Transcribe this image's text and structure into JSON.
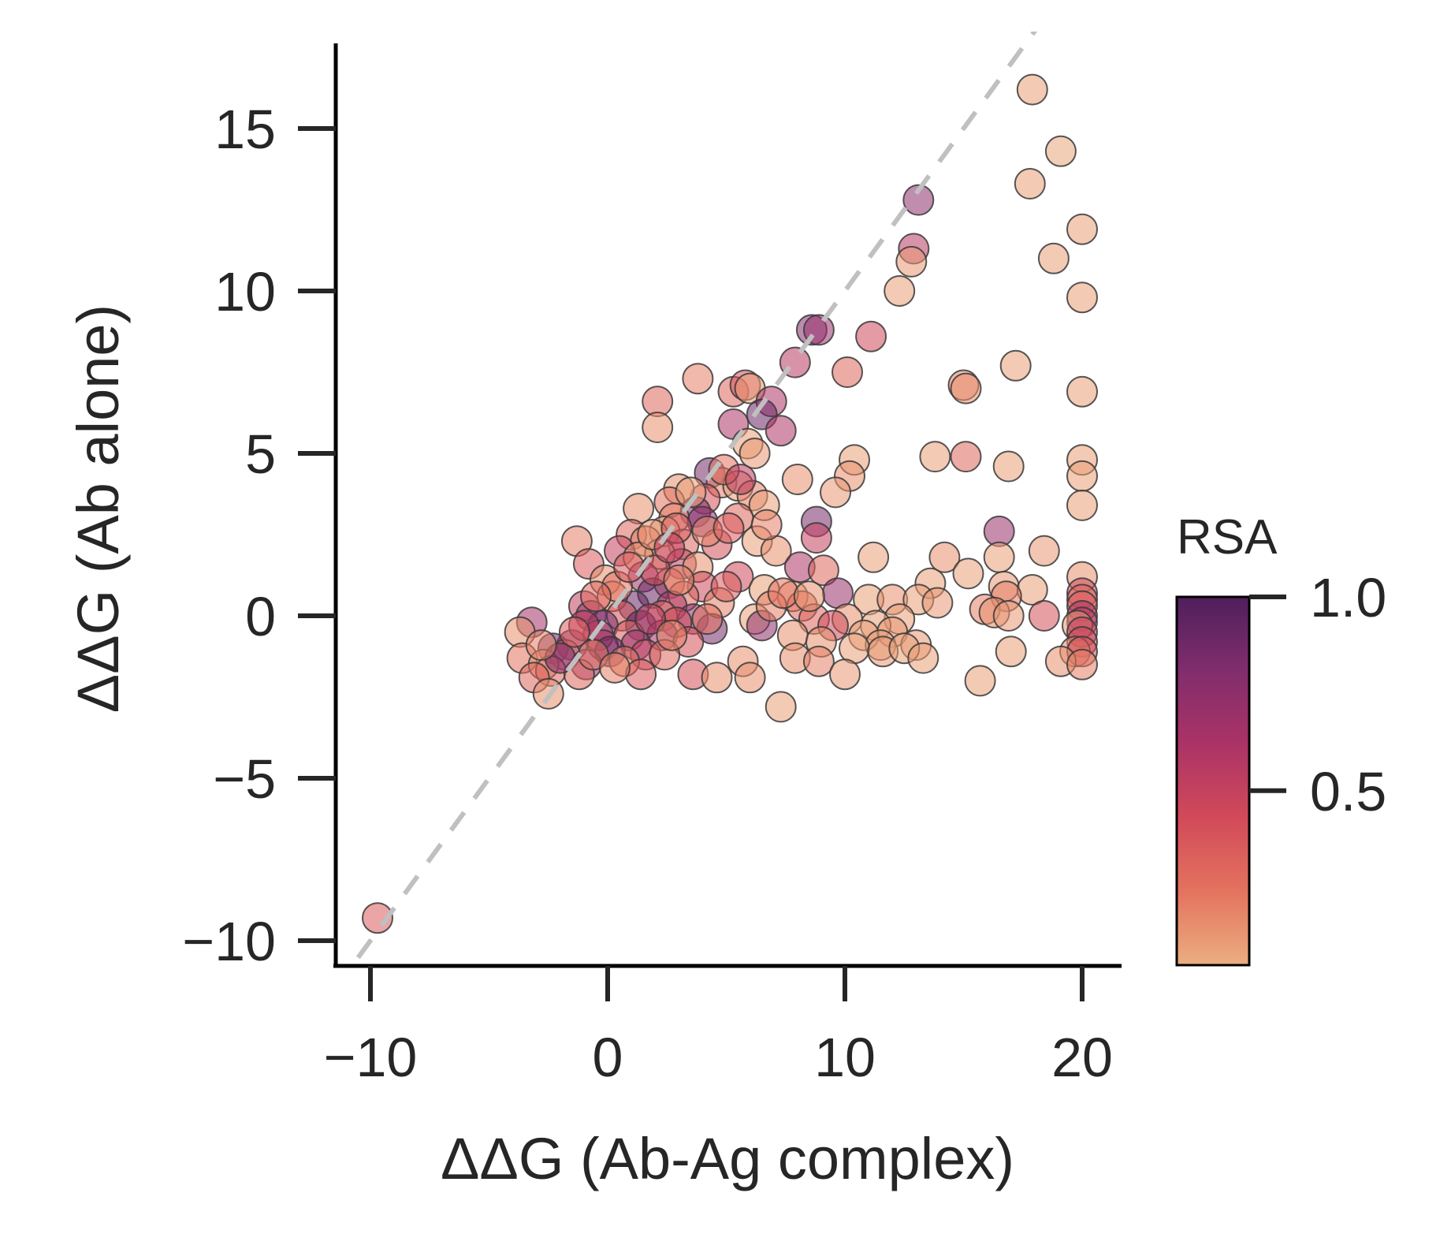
{
  "chart_data": {
    "type": "scatter",
    "title": "",
    "xlabel": "ΔΔG (Ab-Ag complex)",
    "ylabel": "ΔΔG (Ab alone)",
    "xlim": [
      -11.5,
      21.5
    ],
    "ylim": [
      -10.7,
      17.6
    ],
    "xticks": [
      -10,
      0,
      10,
      20
    ],
    "xtick_labels": [
      "−10",
      "0",
      "10",
      "20"
    ],
    "yticks": [
      -10,
      -5,
      0,
      5,
      10,
      15
    ],
    "ytick_labels": [
      "−10",
      "−5",
      "0",
      "5",
      "10",
      "15"
    ],
    "grid": false,
    "reference_line": {
      "style": "dashed",
      "color": "#c0c0c0",
      "slope": 1,
      "intercept": 0
    },
    "colorbar": {
      "title": "RSA",
      "range": [
        0.05,
        1.0
      ],
      "ticks": [
        0.5,
        1.0
      ],
      "tick_labels": [
        "0.5",
        "1.0"
      ],
      "colormap": [
        "#ebae7f",
        "#e4735f",
        "#d24a59",
        "#ab3366",
        "#812d6d",
        "#4f1f5c"
      ]
    },
    "marker": {
      "alpha": 0.55,
      "edgecolor": "#3a3a3a"
    },
    "points": [
      [
        -9.7,
        -9.3,
        0.35
      ],
      [
        17.9,
        16.2,
        0.1
      ],
      [
        19.1,
        14.3,
        0.08
      ],
      [
        17.8,
        13.3,
        0.1
      ],
      [
        13.1,
        12.8,
        0.75
      ],
      [
        20.0,
        11.9,
        0.1
      ],
      [
        12.9,
        11.3,
        0.55
      ],
      [
        12.8,
        10.9,
        0.12
      ],
      [
        18.8,
        11.0,
        0.1
      ],
      [
        12.3,
        10.0,
        0.1
      ],
      [
        20.0,
        9.8,
        0.1
      ],
      [
        11.1,
        8.6,
        0.45
      ],
      [
        8.6,
        8.8,
        0.8
      ],
      [
        8.9,
        8.8,
        0.7
      ],
      [
        7.9,
        7.8,
        0.55
      ],
      [
        17.2,
        7.7,
        0.1
      ],
      [
        10.1,
        7.5,
        0.3
      ],
      [
        3.8,
        7.3,
        0.2
      ],
      [
        15.0,
        7.1,
        0.2
      ],
      [
        15.1,
        7.0,
        0.15
      ],
      [
        20.0,
        6.9,
        0.1
      ],
      [
        5.3,
        6.9,
        0.3
      ],
      [
        5.8,
        7.1,
        0.4
      ],
      [
        6.0,
        7.0,
        0.1
      ],
      [
        6.9,
        6.6,
        0.6
      ],
      [
        6.5,
        6.2,
        0.9
      ],
      [
        2.1,
        6.6,
        0.3
      ],
      [
        2.1,
        5.8,
        0.15
      ],
      [
        5.3,
        5.9,
        0.6
      ],
      [
        7.3,
        5.7,
        0.6
      ],
      [
        5.9,
        5.3,
        0.1
      ],
      [
        10.4,
        4.8,
        0.1
      ],
      [
        13.8,
        4.9,
        0.1
      ],
      [
        15.1,
        4.9,
        0.3
      ],
      [
        16.9,
        4.6,
        0.1
      ],
      [
        20.0,
        4.8,
        0.1
      ],
      [
        10.2,
        4.3,
        0.15
      ],
      [
        20.0,
        4.3,
        0.1
      ],
      [
        8.0,
        4.2,
        0.15
      ],
      [
        9.6,
        3.8,
        0.12
      ],
      [
        4.3,
        4.4,
        0.85
      ],
      [
        4.8,
        4.1,
        0.2
      ],
      [
        5.5,
        4.0,
        0.1
      ],
      [
        6.1,
        3.7,
        0.2
      ],
      [
        4.1,
        3.6,
        0.4
      ],
      [
        3.0,
        3.9,
        0.15
      ],
      [
        2.6,
        3.5,
        0.25
      ],
      [
        3.7,
        3.2,
        0.8
      ],
      [
        6.6,
        3.4,
        0.1
      ],
      [
        1.3,
        3.3,
        0.15
      ],
      [
        20.0,
        3.4,
        0.1
      ],
      [
        2.8,
        3.0,
        0.2
      ],
      [
        4.0,
        2.9,
        0.75
      ],
      [
        5.5,
        3.0,
        0.3
      ],
      [
        8.8,
        2.9,
        0.85
      ],
      [
        16.5,
        2.6,
        0.7
      ],
      [
        2.4,
        2.6,
        0.1
      ],
      [
        1.0,
        2.5,
        0.3
      ],
      [
        1.6,
        2.3,
        0.2
      ],
      [
        -1.3,
        2.3,
        0.2
      ],
      [
        3.2,
        2.2,
        0.3
      ],
      [
        6.3,
        2.3,
        0.1
      ],
      [
        8.8,
        2.4,
        0.5
      ],
      [
        7.1,
        2.0,
        0.15
      ],
      [
        4.6,
        2.2,
        0.4
      ],
      [
        0.5,
        2.0,
        0.5
      ],
      [
        2.2,
        1.9,
        0.1
      ],
      [
        18.4,
        2.0,
        0.12
      ],
      [
        1.3,
        1.8,
        0.15
      ],
      [
        11.2,
        1.8,
        0.1
      ],
      [
        14.2,
        1.8,
        0.15
      ],
      [
        16.5,
        1.8,
        0.1
      ],
      [
        3.1,
        1.6,
        0.5
      ],
      [
        3.8,
        1.5,
        0.15
      ],
      [
        -0.8,
        1.6,
        0.35
      ],
      [
        8.1,
        1.5,
        0.6
      ],
      [
        15.2,
        1.3,
        0.1
      ],
      [
        9.1,
        1.4,
        0.3
      ],
      [
        1.5,
        1.2,
        0.65
      ],
      [
        5.5,
        1.2,
        0.45
      ],
      [
        20.0,
        1.2,
        0.15
      ],
      [
        2.6,
        1.0,
        0.35
      ],
      [
        -0.1,
        1.1,
        0.15
      ],
      [
        16.7,
        0.9,
        0.12
      ],
      [
        13.6,
        1.0,
        0.1
      ],
      [
        1.9,
        0.7,
        0.9
      ],
      [
        4.0,
        0.9,
        0.45
      ],
      [
        6.6,
        0.8,
        0.1
      ],
      [
        17.9,
        0.8,
        0.1
      ],
      [
        20.0,
        0.7,
        0.45
      ],
      [
        0.2,
        0.6,
        0.2
      ],
      [
        3.2,
        0.6,
        0.3
      ],
      [
        7.8,
        0.6,
        0.1
      ],
      [
        9.7,
        0.7,
        0.7
      ],
      [
        11.0,
        0.5,
        0.1
      ],
      [
        12.0,
        0.5,
        0.15
      ],
      [
        13.1,
        0.5,
        0.1
      ],
      [
        16.8,
        0.6,
        0.2
      ],
      [
        20.0,
        0.5,
        0.3
      ],
      [
        -1.0,
        0.3,
        0.5
      ],
      [
        1.1,
        0.3,
        0.9
      ],
      [
        2.7,
        0.3,
        0.6
      ],
      [
        4.7,
        0.4,
        0.2
      ],
      [
        8.2,
        0.3,
        0.3
      ],
      [
        13.9,
        0.4,
        0.12
      ],
      [
        20.0,
        0.3,
        0.35
      ],
      [
        -0.7,
        0.0,
        0.7
      ],
      [
        0.6,
        0.0,
        0.4
      ],
      [
        2.3,
        0.0,
        0.3
      ],
      [
        3.6,
        -0.1,
        0.75
      ],
      [
        6.2,
        -0.1,
        0.1
      ],
      [
        8.7,
        -0.1,
        0.3
      ],
      [
        10.1,
        -0.1,
        0.15
      ],
      [
        12.3,
        -0.1,
        0.1
      ],
      [
        15.9,
        0.2,
        0.2
      ],
      [
        16.3,
        0.1,
        0.15
      ],
      [
        16.9,
        0.0,
        0.12
      ],
      [
        18.4,
        0.0,
        0.4
      ],
      [
        20.0,
        0.0,
        0.6
      ],
      [
        -3.2,
        -0.2,
        0.65
      ],
      [
        -0.2,
        -0.3,
        0.85
      ],
      [
        1.4,
        -0.3,
        0.95
      ],
      [
        2.9,
        -0.2,
        0.45
      ],
      [
        4.4,
        -0.4,
        0.85
      ],
      [
        6.5,
        -0.3,
        0.75
      ],
      [
        9.5,
        -0.3,
        0.45
      ],
      [
        11.3,
        -0.3,
        0.1
      ],
      [
        20.0,
        -0.2,
        0.55
      ],
      [
        19.8,
        -0.3,
        0.12
      ],
      [
        -3.7,
        -0.5,
        0.15
      ],
      [
        -0.4,
        -0.6,
        0.6
      ],
      [
        0.9,
        -0.6,
        0.35
      ],
      [
        2.3,
        -0.6,
        0.65
      ],
      [
        7.8,
        -0.6,
        0.15
      ],
      [
        10.8,
        -0.6,
        0.1
      ],
      [
        12.0,
        -0.5,
        0.12
      ],
      [
        20.0,
        -0.5,
        0.5
      ],
      [
        -1.5,
        -0.9,
        0.75
      ],
      [
        -0.2,
        -0.9,
        0.6
      ],
      [
        1.2,
        -0.9,
        0.7
      ],
      [
        3.4,
        -0.8,
        0.4
      ],
      [
        9.0,
        -0.8,
        0.15
      ],
      [
        11.5,
        -0.9,
        0.1
      ],
      [
        13.0,
        -0.9,
        0.12
      ],
      [
        20.0,
        -0.8,
        0.45
      ],
      [
        -2.3,
        -1.0,
        0.85
      ],
      [
        -1.8,
        -1.2,
        0.3
      ],
      [
        0.1,
        -1.1,
        0.9
      ],
      [
        1.6,
        -1.2,
        0.5
      ],
      [
        2.4,
        -1.2,
        0.3
      ],
      [
        10.4,
        -1.0,
        0.1
      ],
      [
        11.6,
        -1.1,
        0.12
      ],
      [
        12.5,
        -1.0,
        0.1
      ],
      [
        17.0,
        -1.1,
        0.1
      ],
      [
        19.7,
        -1.1,
        0.15
      ],
      [
        20.0,
        -1.1,
        0.4
      ],
      [
        -3.6,
        -1.3,
        0.25
      ],
      [
        -2.7,
        -1.5,
        0.15
      ],
      [
        -0.9,
        -1.5,
        0.7
      ],
      [
        0.7,
        -1.4,
        0.25
      ],
      [
        5.7,
        -1.4,
        0.15
      ],
      [
        7.9,
        -1.3,
        0.15
      ],
      [
        8.9,
        -1.4,
        0.2
      ],
      [
        13.3,
        -1.3,
        0.1
      ],
      [
        19.1,
        -1.4,
        0.15
      ],
      [
        20.0,
        -1.5,
        0.2
      ],
      [
        -2.4,
        -1.7,
        0.3
      ],
      [
        -1.2,
        -1.8,
        0.3
      ],
      [
        1.4,
        -1.8,
        0.35
      ],
      [
        3.6,
        -1.8,
        0.4
      ],
      [
        4.6,
        -1.9,
        0.15
      ],
      [
        6.0,
        -1.9,
        0.15
      ],
      [
        10.0,
        -1.8,
        0.12
      ],
      [
        15.7,
        -2.0,
        0.1
      ],
      [
        -3.1,
        -1.9,
        0.3
      ],
      [
        -2.5,
        -2.4,
        0.15
      ],
      [
        7.3,
        -2.8,
        0.1
      ],
      [
        -2.0,
        -1.3,
        0.8
      ],
      [
        -1.0,
        -0.3,
        0.55
      ],
      [
        0.4,
        0.9,
        0.25
      ],
      [
        1.9,
        2.5,
        0.15
      ],
      [
        2.9,
        2.7,
        0.35
      ],
      [
        3.5,
        3.8,
        0.1
      ],
      [
        4.9,
        4.5,
        0.25
      ],
      [
        5.6,
        4.2,
        0.55
      ],
      [
        6.2,
        5.0,
        0.12
      ],
      [
        4.2,
        2.6,
        0.2
      ],
      [
        5.1,
        2.7,
        0.35
      ],
      [
        6.7,
        2.8,
        0.2
      ],
      [
        2.0,
        1.4,
        0.45
      ],
      [
        3.0,
        1.1,
        0.2
      ],
      [
        0.9,
        1.5,
        0.35
      ],
      [
        -0.5,
        0.6,
        0.3
      ],
      [
        1.8,
        -0.1,
        0.55
      ],
      [
        2.7,
        -0.6,
        0.2
      ],
      [
        4.2,
        -0.1,
        0.25
      ],
      [
        5.0,
        0.9,
        0.35
      ],
      [
        6.9,
        0.3,
        0.2
      ],
      [
        7.4,
        0.7,
        0.25
      ],
      [
        8.5,
        0.6,
        0.15
      ],
      [
        -1.4,
        -0.5,
        0.35
      ],
      [
        -2.8,
        -0.9,
        0.2
      ],
      [
        -0.6,
        -1.2,
        0.25
      ],
      [
        0.3,
        -1.6,
        0.2
      ],
      [
        2.6,
        2.1,
        0.5
      ]
    ]
  }
}
